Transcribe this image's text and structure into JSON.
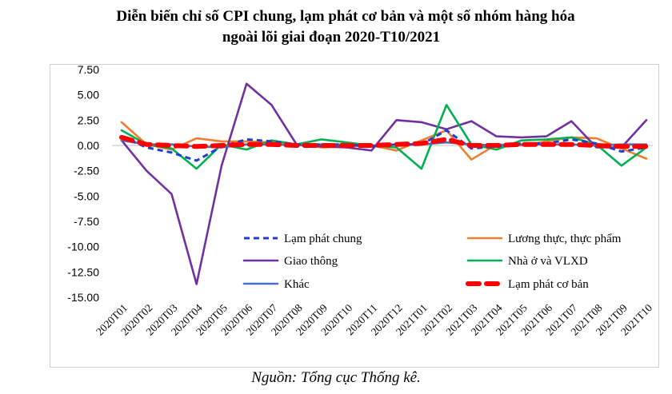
{
  "title_line1": "Diễn biến chỉ số CPI chung, lạm phát cơ bản và một số nhóm hàng hóa",
  "title_line2": "ngoài lõi giai đoạn 2020-T10/2021",
  "source": "Nguồn: Tổng cục Thống kê.",
  "chart_data": {
    "type": "line",
    "ylim": [
      -15,
      7.5
    ],
    "yticks": [
      "7.50",
      "5.00",
      "2.50",
      "0.00",
      "-2.50",
      "-5.00",
      "-7.50",
      "-10.00",
      "-12.50",
      "-15.00"
    ],
    "categories": [
      "2020T01",
      "2020T02",
      "2020T03",
      "2020T04",
      "2020T05",
      "2020T06",
      "2020T07",
      "2020T08",
      "2020T09",
      "2020T10",
      "2020T11",
      "2020T12",
      "2021T01",
      "2021T02",
      "2021T03",
      "2021T04",
      "2021T05",
      "2021T06",
      "2021T07",
      "2021T08",
      "2021T09",
      "2021T10"
    ],
    "legend_position": "inside-lower",
    "series": [
      {
        "name": "Lạm phát chung",
        "color": "#1f3fd1",
        "style": "dashed",
        "values": [
          0.9,
          -0.2,
          -0.7,
          -1.5,
          -0.1,
          0.6,
          0.4,
          0.1,
          0.1,
          0.1,
          -0.1,
          0.1,
          0.1,
          1.5,
          -0.3,
          -0.1,
          0.2,
          0.2,
          0.6,
          0.2,
          -0.6,
          -0.2
        ]
      },
      {
        "name": "Lương thực, thực phẩm",
        "color": "#ed7d31",
        "style": "solid",
        "values": [
          2.3,
          0.1,
          -0.4,
          0.7,
          0.4,
          0.4,
          0.3,
          0.1,
          -0.2,
          -0.1,
          0.0,
          -0.5,
          0.5,
          1.5,
          -1.4,
          0.1,
          0.0,
          0.4,
          0.8,
          0.7,
          -0.3,
          -1.3
        ]
      },
      {
        "name": "Giao thông",
        "color": "#7030a0",
        "style": "solid",
        "values": [
          0.5,
          -2.5,
          -4.8,
          -13.7,
          -2.0,
          6.1,
          4.0,
          0.1,
          -0.1,
          -0.2,
          -0.5,
          2.5,
          2.3,
          1.6,
          2.4,
          0.9,
          0.8,
          0.9,
          2.4,
          -0.2,
          -0.2,
          2.5
        ]
      },
      {
        "name": "Nhà ở và VLXD",
        "color": "#00b050",
        "style": "solid",
        "values": [
          1.5,
          0.1,
          -0.3,
          -2.3,
          0.1,
          -0.4,
          0.5,
          0.1,
          0.6,
          0.3,
          0.0,
          -0.2,
          -2.3,
          4.0,
          0.1,
          -0.4,
          0.5,
          0.6,
          0.8,
          0.1,
          -2.0,
          -0.2
        ]
      },
      {
        "name": "Khác",
        "color": "#4472c4",
        "style": "solid",
        "values": [
          0.5,
          0.1,
          0.1,
          -0.1,
          -0.2,
          0.1,
          0.1,
          0.0,
          0.1,
          0.0,
          0.0,
          0.1,
          0.1,
          0.3,
          0.1,
          0.0,
          0.1,
          0.1,
          0.1,
          0.0,
          0.1,
          0.1
        ]
      },
      {
        "name": "Lạm phát cơ bản",
        "color": "#ff0000",
        "style": "thick-dashed",
        "values": [
          0.8,
          0.1,
          0.0,
          -0.1,
          0.0,
          0.1,
          0.1,
          0.0,
          0.0,
          0.0,
          0.0,
          0.1,
          0.2,
          0.6,
          0.0,
          0.0,
          0.1,
          0.1,
          0.1,
          0.0,
          -0.1,
          -0.1
        ]
      }
    ]
  }
}
